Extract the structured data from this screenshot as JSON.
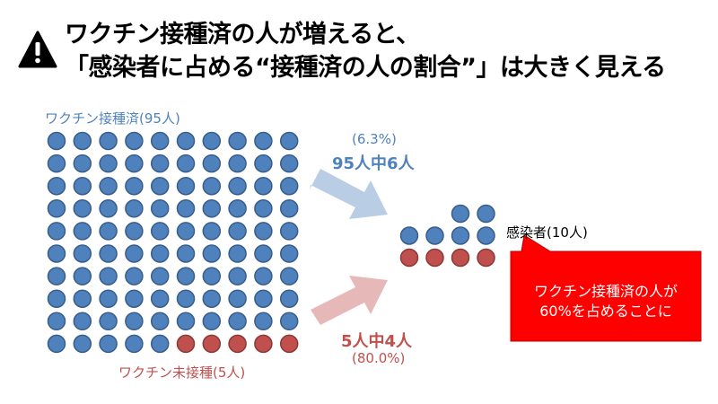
{
  "header": {
    "title_line1": "ワクチン接種済の人が増えると、",
    "title_line2": "「感染者に占める“接種済の人の割合”」は大きく見える"
  },
  "labels": {
    "vaccinated": "ワクチン接種済(95人)",
    "unvaccinated": "ワクチン未接種(5人)",
    "infected": "感染者(10人)"
  },
  "arrows": {
    "vaccinated_percent": "(6.3%)",
    "vaccinated_count": "95人中6人",
    "unvaccinated_count": "5人中4人",
    "unvaccinated_percent": "(80.0%)"
  },
  "callout": {
    "line1": "ワクチン接種済の人が",
    "line2": "60%を占めることに"
  },
  "population": {
    "vaccinated": 95,
    "unvaccinated": 5
  },
  "infected_dots": {
    "vaccinated": 6,
    "unvaccinated": 4
  },
  "colors": {
    "vaccinated": "#4f81bd",
    "vaccinated_border": "#385d8a",
    "unvaccinated": "#c0504d",
    "unvaccinated_border": "#8c3836",
    "arrow_blue": "#b9cde5",
    "arrow_red": "#e6b9b8",
    "callout_bg": "#ff0000",
    "callout_text": "#ffffff"
  }
}
